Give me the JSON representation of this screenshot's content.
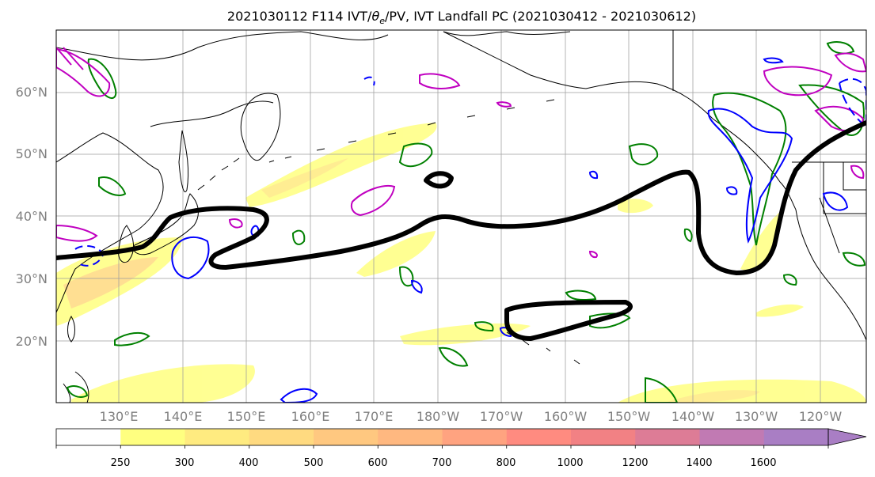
{
  "title_pre": "2021030112 F114 IVT/",
  "title_theta": "θ",
  "title_sub": "e",
  "title_post": "/PV, IVT Landfall PC (2021030412 - 2021030612)",
  "map": {
    "lat_labels": [
      "60°N",
      "50°N",
      "40°N",
      "30°N",
      "20°N"
    ],
    "lat_values": [
      60,
      50,
      40,
      30,
      20
    ],
    "lon_labels": [
      "130°E",
      "140°E",
      "150°E",
      "160°E",
      "170°E",
      "180°W",
      "170°W",
      "160°W",
      "150°W",
      "140°W",
      "130°W",
      "120°W"
    ],
    "lon_values": [
      130,
      140,
      150,
      160,
      170,
      180,
      190,
      200,
      210,
      220,
      230,
      240
    ],
    "lon_range": [
      120,
      247
    ],
    "lat_range": [
      10,
      70
    ]
  },
  "colorbar": {
    "ticks": [
      "250",
      "300",
      "400",
      "500",
      "600",
      "700",
      "800",
      "1000",
      "1200",
      "1400",
      "1600"
    ],
    "colors": [
      "#ffffff",
      "#ffff80",
      "#ffeb80",
      "#ffda80",
      "#ffc880",
      "#ffb880",
      "#ffa380",
      "#ff8b80",
      "#f28184",
      "#dd7c96",
      "#c17ab3",
      "#a97ec4"
    ]
  },
  "colors": {
    "ivt_contour": "#000000",
    "theta_e": "#008000",
    "pv_positive": "#0000ff",
    "pv_negative": "#c000c0"
  }
}
